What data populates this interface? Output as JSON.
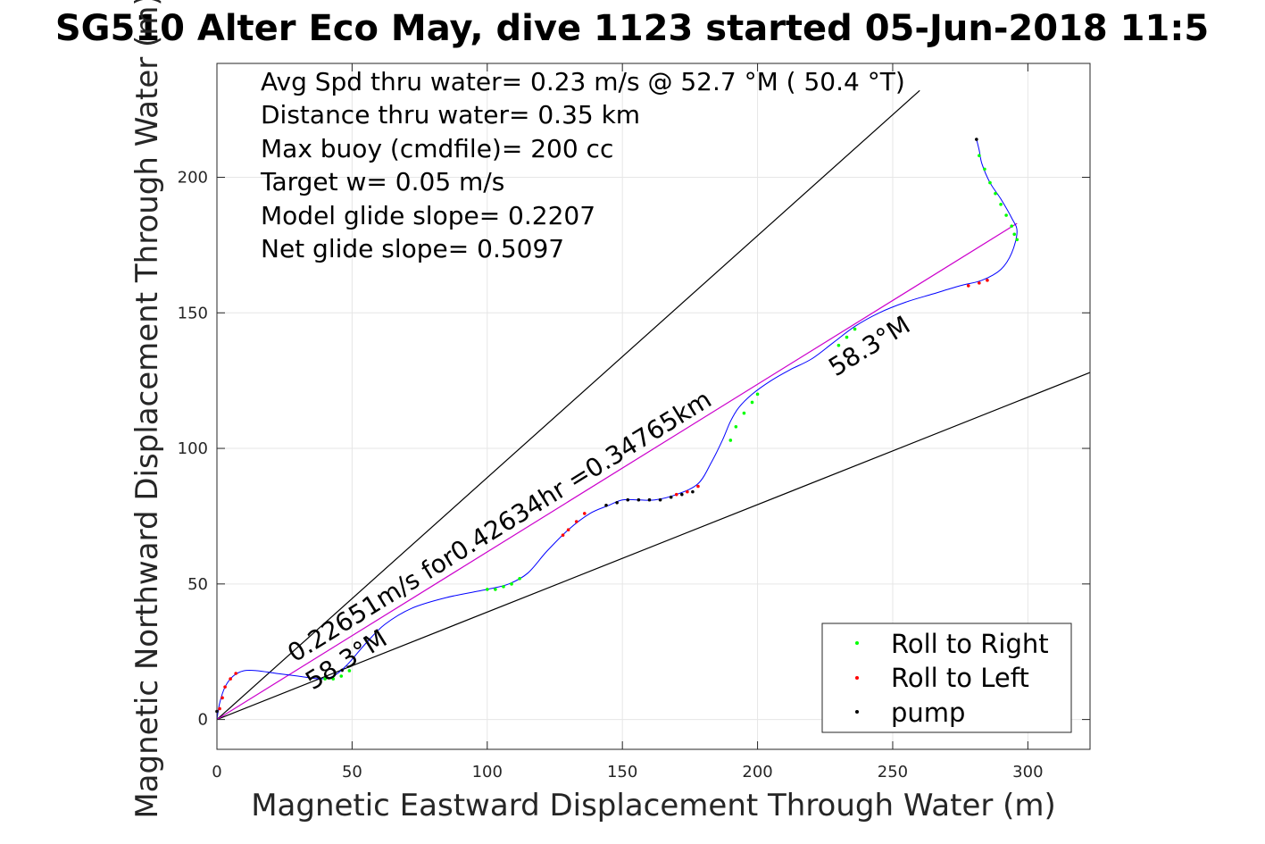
{
  "chart_data": {
    "type": "line",
    "title": "SG510 Alter Eco May, dive 1123 started 05-Jun-2018 11:5",
    "xlabel": "Magnetic Eastward Displacement Through Water (m)",
    "ylabel": "Magnetic Northward Displacement Through Water (m)",
    "xlim": [
      0,
      323
    ],
    "ylim": [
      -11,
      242
    ],
    "xticks": [
      0,
      50,
      100,
      150,
      200,
      250,
      300
    ],
    "yticks": [
      0,
      50,
      100,
      150,
      200
    ],
    "grid": true,
    "annotations": [
      "Avg Spd thru water=  0.23 m/s @  52.7 °M ( 50.4 °T)",
      "Distance thru water=  0.35 km",
      "Max buoy (cmdfile)= 200 cc",
      "Target w= 0.05 m/s",
      "Model glide slope= 0.2207",
      "Net glide slope= 0.5097"
    ],
    "line_labels": {
      "speed_label": "0.22651m/s for0.42634hr =0.34765km",
      "heading_upper": "58.3°M",
      "heading_lower": "58.3°M"
    },
    "reference_lines": [
      {
        "name": "upper-bound",
        "x": [
          0,
          260
        ],
        "y": [
          0,
          232
        ],
        "color": "#000000"
      },
      {
        "name": "lower-bound",
        "x": [
          0,
          323
        ],
        "y": [
          0,
          128
        ],
        "color": "#000000"
      },
      {
        "name": "net-track",
        "x": [
          0,
          296
        ],
        "y": [
          0,
          183
        ],
        "color": "#cc00cc"
      }
    ],
    "track": {
      "name": "dive-track",
      "color": "#0000ff",
      "x": [
        0,
        1,
        3,
        6,
        10,
        15,
        22,
        30,
        38,
        43,
        48,
        55,
        62,
        72,
        85,
        100,
        108,
        115,
        122,
        130,
        138,
        145,
        150,
        156,
        162,
        170,
        178,
        183,
        187,
        190,
        193,
        198,
        205,
        212,
        220,
        228,
        236,
        245,
        255,
        265,
        275,
        283,
        290,
        294,
        296,
        294,
        290,
        286,
        283,
        282,
        281
      ],
      "y": [
        0,
        6,
        12,
        16,
        18,
        18,
        17,
        16,
        15,
        16,
        20,
        28,
        35,
        41,
        45,
        48,
        50,
        54,
        62,
        70,
        76,
        79,
        81,
        81,
        81,
        83,
        87,
        95,
        103,
        110,
        115,
        120,
        125,
        129,
        133,
        139,
        145,
        150,
        154,
        157,
        160,
        162,
        166,
        172,
        180,
        185,
        192,
        198,
        205,
        210,
        214
      ]
    },
    "series": [
      {
        "name": "Roll to Right",
        "color": "#00ff00",
        "x": [
          40,
          43,
          46,
          49,
          100,
          103,
          106,
          109,
          112,
          190,
          192,
          195,
          198,
          200,
          230,
          233,
          236,
          282,
          284,
          286,
          288,
          290,
          292,
          294,
          295,
          296
        ],
        "y": [
          15,
          15,
          16,
          18,
          48,
          48,
          49,
          50,
          52,
          103,
          108,
          113,
          117,
          120,
          138,
          141,
          144,
          208,
          203,
          198,
          194,
          190,
          186,
          182,
          179,
          177
        ]
      },
      {
        "name": "Roll to Left",
        "color": "#ff0000",
        "x": [
          1,
          2,
          3,
          5,
          7,
          128,
          130,
          133,
          136,
          170,
          174,
          178,
          278,
          282,
          285
        ],
        "y": [
          4,
          8,
          12,
          15,
          17,
          68,
          70,
          73,
          76,
          83,
          84,
          86,
          160,
          161,
          162
        ],
        "extra": []
      },
      {
        "name": "pump",
        "color": "#000000",
        "x": [
          0,
          144,
          148,
          152,
          156,
          160,
          164,
          168,
          172,
          176,
          281
        ],
        "y": [
          3,
          79,
          80,
          81,
          81,
          81,
          81,
          82,
          83,
          84,
          214
        ]
      }
    ],
    "legend": {
      "placement": "bottom-right",
      "entries": [
        {
          "label": "Roll to Right",
          "color": "#00ff00"
        },
        {
          "label": "Roll to Left",
          "color": "#ff0000"
        },
        {
          "label": "pump",
          "color": "#000000"
        }
      ]
    }
  }
}
